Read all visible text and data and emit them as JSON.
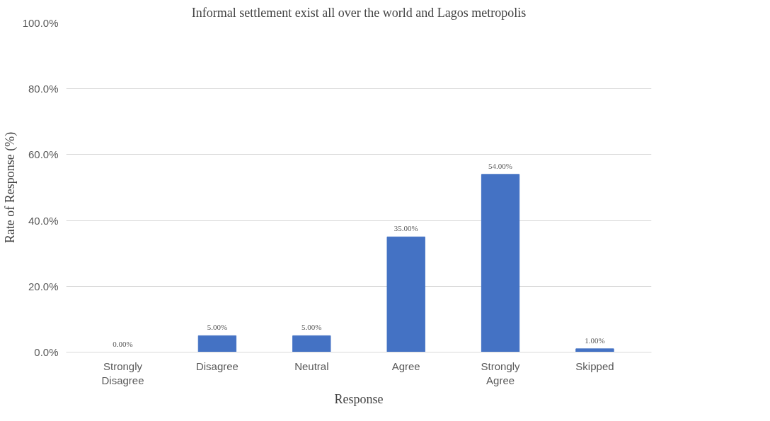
{
  "chart_data": {
    "type": "bar",
    "title": "Informal settlement exist all over the world and Lagos metropolis",
    "xlabel": "Response",
    "ylabel": "Rate of Response (%)",
    "categories": [
      "Strongly Disagree",
      "Disagree",
      "Neutral",
      "Agree",
      "Strongly Agree",
      "Skipped"
    ],
    "values": [
      0,
      5,
      5,
      35,
      54,
      1
    ],
    "value_labels": [
      "0.00%",
      "5.00%",
      "5.00%",
      "35.00%",
      "54.00%",
      "1.00%"
    ],
    "color": "#4472c4",
    "ylim": [
      0,
      100
    ],
    "yticks": [
      {
        "value": 0,
        "label": "0.0%"
      },
      {
        "value": 20,
        "label": "20.0%"
      },
      {
        "value": 40,
        "label": "40.0%"
      },
      {
        "value": 60,
        "label": "60.0%"
      },
      {
        "value": 80,
        "label": "80.0%"
      },
      {
        "value": 100,
        "label": "100.0%"
      }
    ],
    "grid": "y"
  }
}
